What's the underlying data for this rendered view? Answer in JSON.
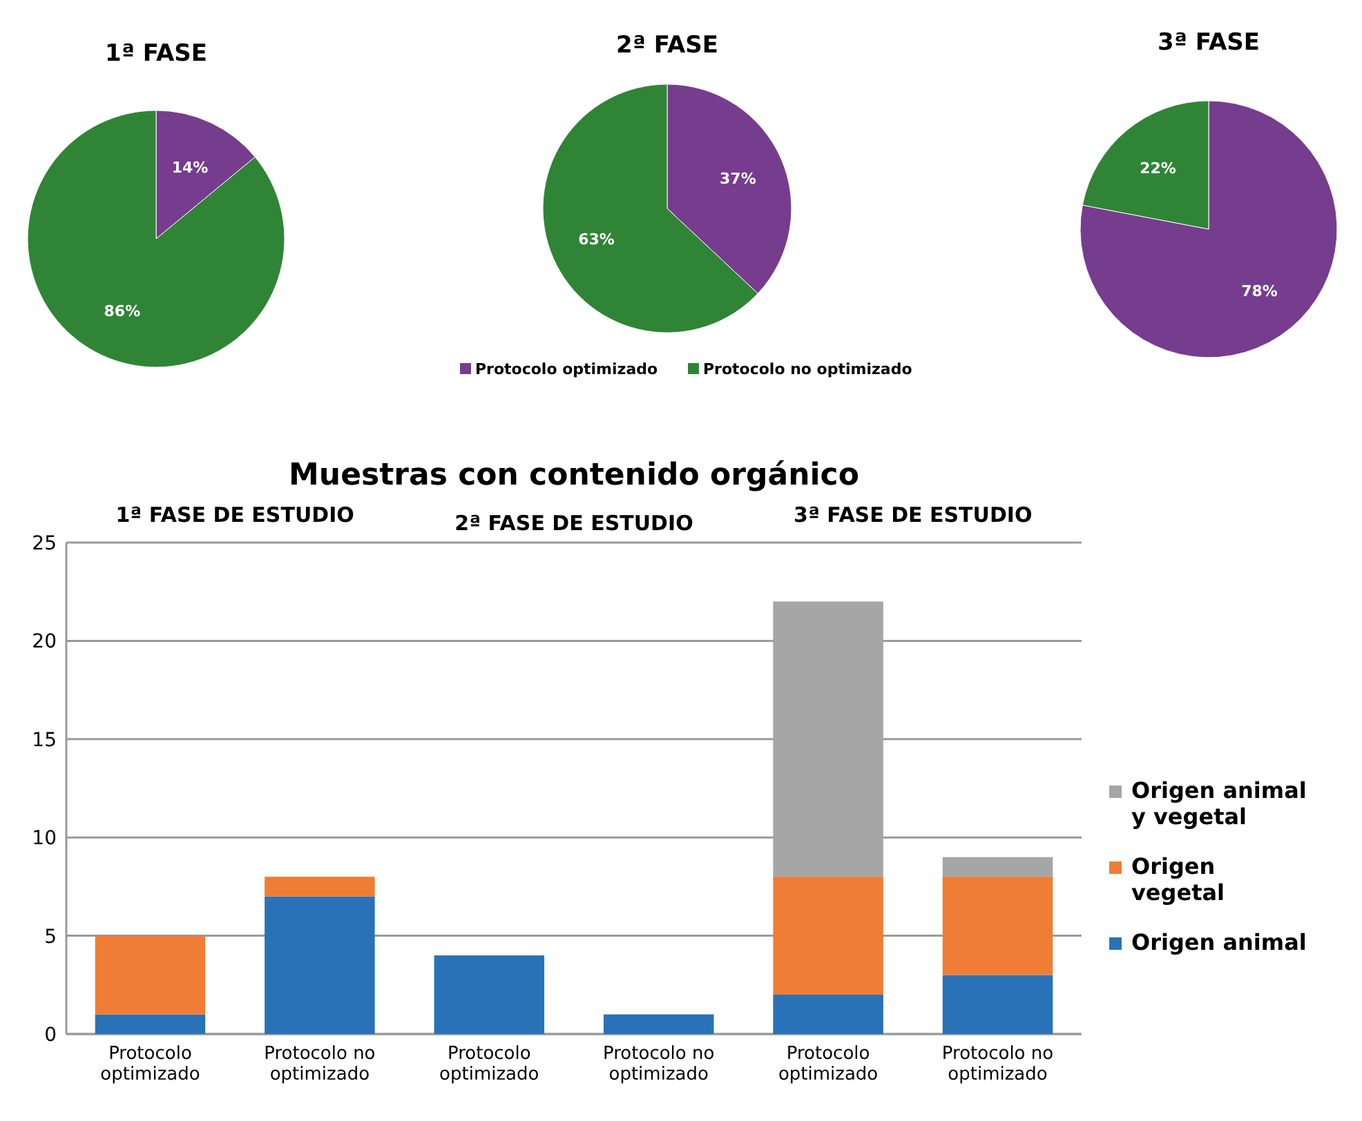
{
  "chart_data": [
    {
      "type": "pie",
      "title": "1ª FASE",
      "values": [
        14,
        86
      ],
      "colors": [
        "#763c8e",
        "#2f8535"
      ],
      "value_labels": [
        "14%",
        "86%"
      ]
    },
    {
      "type": "pie",
      "title": "2ª FASE",
      "categories": [
        "Protocolo optimizado",
        "Protocolo no optimizado"
      ],
      "values": [
        37,
        63
      ],
      "colors": [
        "#763c8e",
        "#2f8535"
      ],
      "value_labels": [
        "37%",
        "63%"
      ],
      "legend": "bottom"
    },
    {
      "type": "pie",
      "title": "3ª FASE",
      "values": [
        78,
        22
      ],
      "colors": [
        "#763c8e",
        "#2f8535"
      ],
      "value_labels": [
        "78%",
        "22%"
      ]
    },
    {
      "type": "bar",
      "stacked": true,
      "title": "Muestras con contenido orgánico",
      "categories": [
        "Protocolo optimizado",
        "Protocolo no optimizado",
        "Protocolo optimizado",
        "Protocolo no optimizado",
        "Protocolo optimizado",
        "Protocolo no optimizado"
      ],
      "series": [
        {
          "name": "Origen animal",
          "color": "#2a72b8",
          "values": [
            1,
            7,
            4,
            1,
            2,
            3
          ]
        },
        {
          "name": "Origen vegetal",
          "color": "#ef7d35",
          "values": [
            4,
            1,
            0,
            0,
            6,
            5
          ]
        },
        {
          "name": "Origen animal y vegetal",
          "color": "#a6a6a6",
          "values": [
            0,
            0,
            0,
            0,
            14,
            1
          ]
        }
      ],
      "ylim": [
        0,
        25
      ],
      "yticks": [
        0,
        5,
        10,
        15,
        20,
        25
      ],
      "grid": "y",
      "legend": "right",
      "annotations": [
        "1ª FASE DE ESTUDIO",
        "2ª FASE DE ESTUDIO",
        "3ª FASE DE ESTUDIO"
      ]
    }
  ]
}
